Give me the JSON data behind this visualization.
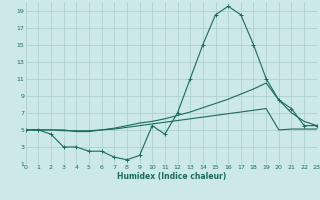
{
  "xlabel": "Humidex (Indice chaleur)",
  "x_values": [
    0,
    1,
    2,
    3,
    4,
    5,
    6,
    7,
    8,
    9,
    10,
    11,
    12,
    13,
    14,
    15,
    16,
    17,
    18,
    19,
    20,
    21,
    22,
    23
  ],
  "line1": [
    5,
    5,
    4.5,
    3,
    3,
    2.5,
    2.5,
    1.8,
    1.5,
    2,
    5.5,
    4.5,
    7,
    11,
    15,
    18.5,
    19.5,
    18.5,
    15,
    11,
    8.5,
    7.5,
    5.5,
    5.5
  ],
  "line2": [
    5,
    5,
    5,
    5,
    4.8,
    4.8,
    5,
    5.2,
    5.5,
    5.8,
    6,
    6.3,
    6.7,
    7.1,
    7.6,
    8.1,
    8.6,
    9.2,
    9.8,
    10.5,
    8.5,
    7,
    6,
    5.5
  ],
  "line3": [
    5,
    5,
    5,
    4.9,
    4.9,
    4.9,
    5,
    5.1,
    5.3,
    5.5,
    5.7,
    5.9,
    6.1,
    6.3,
    6.5,
    6.7,
    6.9,
    7.1,
    7.3,
    7.5,
    5,
    5.1,
    5.1,
    5.1
  ],
  "bg_color": "#cce8e8",
  "grid_color": "#aacccc",
  "line_color": "#1a6b5a",
  "xlim": [
    0,
    23
  ],
  "ylim": [
    1,
    20
  ],
  "yticks": [
    1,
    3,
    5,
    7,
    9,
    11,
    13,
    15,
    17,
    19
  ],
  "xticks": [
    0,
    1,
    2,
    3,
    4,
    5,
    6,
    7,
    8,
    9,
    10,
    11,
    12,
    13,
    14,
    15,
    16,
    17,
    18,
    19,
    20,
    21,
    22,
    23
  ]
}
